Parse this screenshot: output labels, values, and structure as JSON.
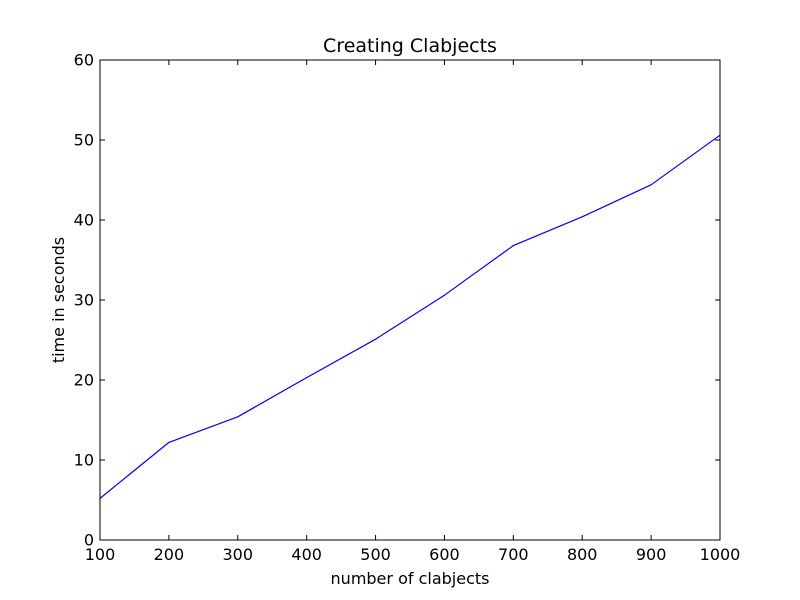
{
  "chart_data": {
    "type": "line",
    "title": "Creating Clabjects",
    "xlabel": "number of clabjects",
    "ylabel": "time in seconds",
    "xlim": [
      100,
      1000
    ],
    "ylim": [
      0,
      60
    ],
    "xticks": [
      100,
      200,
      300,
      400,
      500,
      600,
      700,
      800,
      900,
      1000
    ],
    "yticks": [
      0,
      10,
      20,
      30,
      40,
      50,
      60
    ],
    "grid": false,
    "series": [
      {
        "color": "#0000ff",
        "x": [
          100,
          200,
          300,
          400,
          500,
          600,
          700,
          800,
          900,
          1000
        ],
        "y": [
          5.2,
          12.2,
          15.4,
          20.3,
          25.1,
          30.6,
          36.8,
          40.4,
          44.4,
          50.6
        ]
      }
    ]
  }
}
